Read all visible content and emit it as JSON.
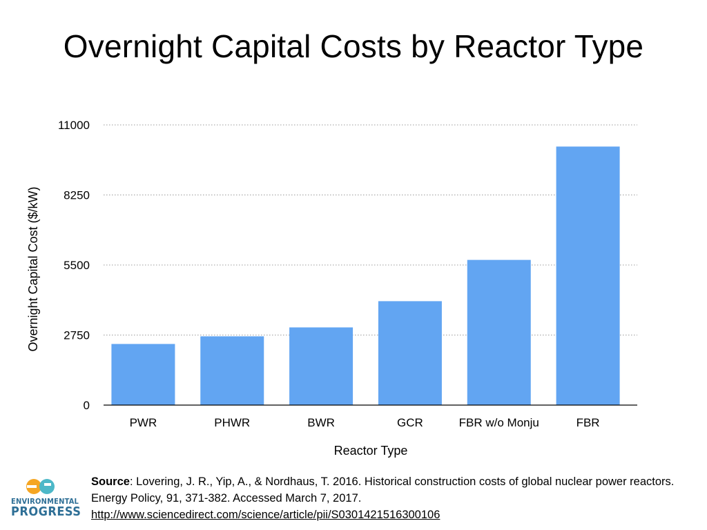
{
  "title": "Overnight Capital Costs by Reactor Type",
  "chart_data": {
    "type": "bar",
    "title": "Overnight Capital Costs by Reactor Type",
    "xlabel": "Reactor Type",
    "ylabel": "Overnight Capital Cost ($/kW)",
    "categories": [
      "PWR",
      "PHWR",
      "BWR",
      "GCR",
      "FBR w/o Monju",
      "FBR"
    ],
    "values": [
      2400,
      2700,
      3050,
      4080,
      5700,
      10150
    ],
    "ylim": [
      0,
      11000
    ],
    "yticks": [
      0,
      2750,
      5500,
      8250,
      11000
    ],
    "grid": true,
    "bar_color": "#62a5f2"
  },
  "logo": {
    "glyph": "ep",
    "line1": "ENVIRONMENTAL",
    "line2": "PROGRESS",
    "colors": {
      "orange": "#f5a623",
      "teal": "#4db8c8",
      "navy": "#2e6f96"
    }
  },
  "source": {
    "label": "Source",
    "text": ": Lovering, J. R., Yip, A., & Nordhaus, T. 2016. Historical construction costs of global nuclear power reactors. Energy Policy, 91, 371-382. Accessed March 7, 2017. ",
    "link": "http://www.sciencedirect.com/science/article/pii/S0301421516300106"
  }
}
